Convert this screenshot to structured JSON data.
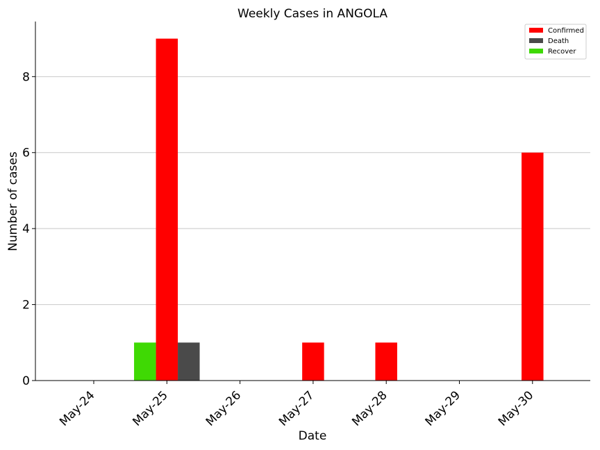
{
  "chart_data": {
    "type": "bar",
    "title": "Weekly Cases in ANGOLA",
    "xlabel": "Date",
    "ylabel": "Number of cases",
    "categories": [
      "May-24",
      "May-25",
      "May-26",
      "May-27",
      "May-28",
      "May-29",
      "May-30"
    ],
    "series": [
      {
        "name": "Confirmed",
        "color": "#ff0000",
        "values": [
          0,
          9,
          0,
          1,
          1,
          0,
          6
        ]
      },
      {
        "name": "Death",
        "color": "#4a4a4a",
        "values": [
          0,
          1,
          0,
          0,
          0,
          0,
          0
        ]
      },
      {
        "name": "Recover",
        "color": "#3fd904",
        "values": [
          0,
          1,
          0,
          0,
          0,
          0,
          0
        ]
      }
    ],
    "ylim": [
      0,
      9.45
    ],
    "yticks": [
      0,
      2,
      4,
      6,
      8
    ],
    "grid": "horizontal",
    "legend_position": "top-right"
  }
}
